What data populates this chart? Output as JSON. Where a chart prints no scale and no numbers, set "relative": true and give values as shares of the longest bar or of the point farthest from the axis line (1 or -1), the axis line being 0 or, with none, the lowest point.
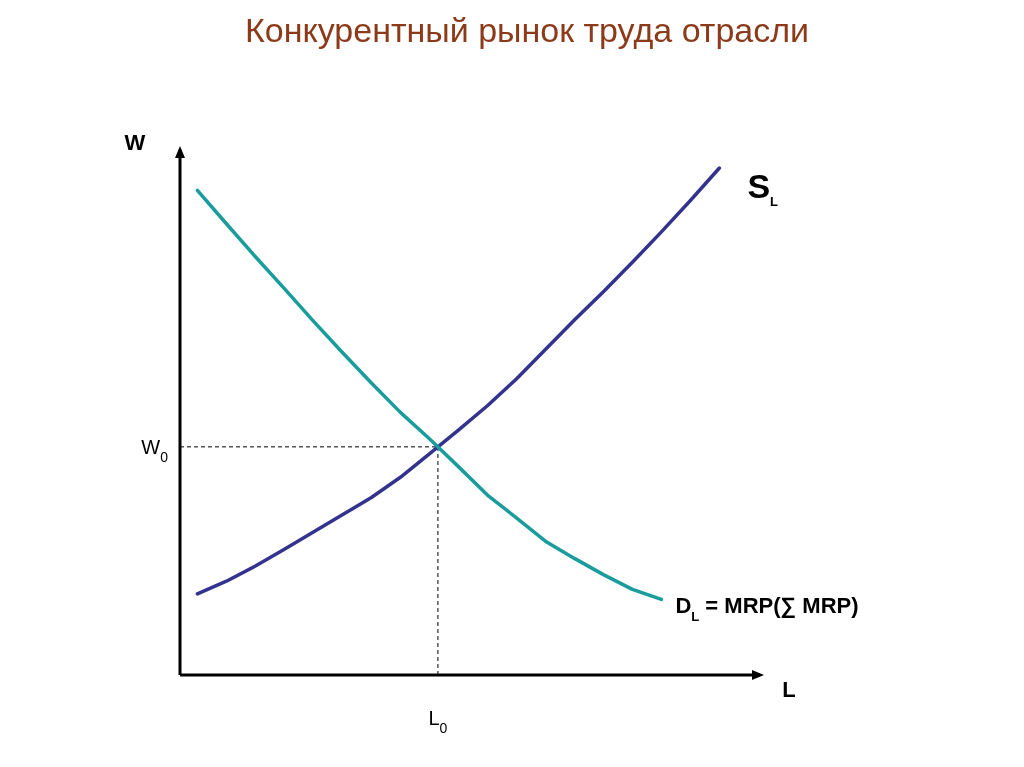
{
  "chart_data": {
    "type": "line",
    "title": "Конкурентный рынок труда отрасли",
    "xlabel": "L",
    "ylabel": "W",
    "relative": true,
    "legend": false,
    "marker": "none",
    "line_style": "solid",
    "categories": [
      null,
      null,
      null,
      null,
      null,
      null,
      null,
      null,
      null,
      null,
      null,
      null,
      null,
      null,
      null,
      null,
      null,
      null,
      null
    ],
    "series": [
      {
        "name": "S$_{L}$",
        "color": "#33338f",
        "values": [
          0.16,
          0.185,
          0.215,
          0.248,
          0.282,
          0.316,
          0.35,
          0.39,
          0.436,
          0.483,
          0.531,
          0.584,
          0.642,
          0.7,
          0.756,
          0.814,
          0.874,
          0.936,
          1
        ]
      },
      {
        "name": "D$_{L}$ = MRP(∑ MRP)",
        "color": "#1a9c9c",
        "values": [
          0.956,
          0.89,
          0.825,
          0.762,
          0.698,
          0.636,
          0.576,
          0.518,
          0.466,
          0.411,
          0.355,
          0.31,
          0.264,
          0.23,
          0.198,
          0.169,
          0.149,
          null,
          null
        ]
      }
    ],
    "ref_lines": [
      {
        "axis": "y",
        "value": 0.45,
        "label": "W$_{0}$",
        "line_style": "dashed",
        "color": "#000000"
      }
    ],
    "annotations": [
      "L$_{0}$"
    ]
  }
}
